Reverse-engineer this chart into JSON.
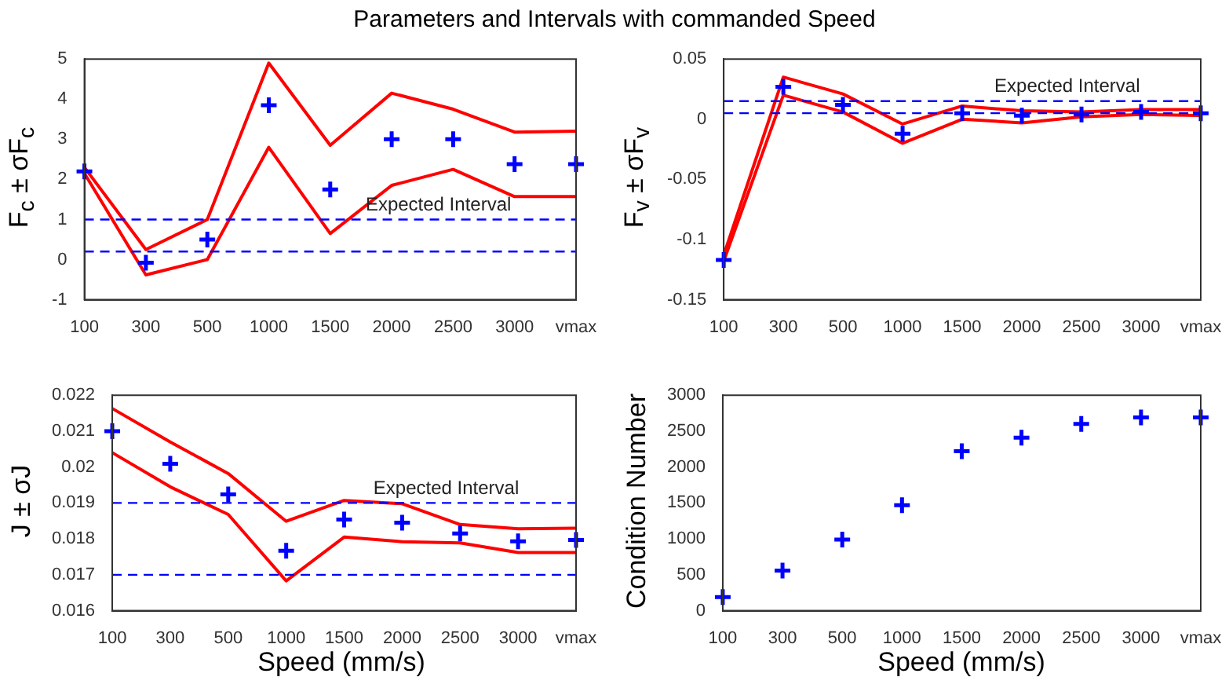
{
  "chart_data": [
    {
      "type": "line",
      "title": "Parameters and Intervals with commanded Speed",
      "ylabel": "F$_{c}$ ± σF$_{c}$",
      "categories": [
        "100",
        "300",
        "500",
        "1000",
        "1500",
        "2000",
        "2500",
        "3000",
        "vmax"
      ],
      "ylim": [
        -1,
        5
      ],
      "yticks": [
        -1,
        0,
        1,
        2,
        3,
        4,
        5
      ],
      "grid": false,
      "legend": false,
      "series": [
        {
          "color": "#ff0000",
          "marker": "none",
          "values": [
            2.3,
            0.25,
            1.0,
            4.9,
            2.85,
            4.15,
            3.75,
            3.18,
            3.2
          ]
        },
        {
          "color": "#ff0000",
          "marker": "none",
          "values": [
            2.15,
            -0.38,
            0.0,
            2.8,
            0.65,
            1.85,
            2.25,
            1.57,
            1.57
          ]
        },
        {
          "type": "scatter",
          "color": "#0000ff",
          "marker": "cross",
          "values": [
            2.2,
            -0.08,
            0.5,
            3.85,
            1.75,
            3.0,
            3.0,
            2.38,
            2.38
          ]
        }
      ],
      "ref_lines": [
        {
          "axis": "y",
          "value": 1,
          "color": "#0000ff",
          "line_style": "dashed"
        },
        {
          "axis": "y",
          "value": 0.2,
          "color": "#0000ff",
          "line_style": "dashed"
        }
      ],
      "annotations": [
        "Expected Interval"
      ]
    },
    {
      "type": "line",
      "ylabel": "F$_{v}$ ± σF$_{v}$",
      "categories": [
        "100",
        "300",
        "500",
        "1000",
        "1500",
        "2000",
        "2500",
        "3000",
        "vmax"
      ],
      "ylim": [
        -0.15,
        0.05
      ],
      "yticks": [
        -0.15,
        -0.1,
        -0.05,
        0,
        0.05
      ],
      "grid": false,
      "legend": false,
      "series": [
        {
          "color": "#ff0000",
          "marker": "none",
          "values": [
            -0.113,
            0.035,
            0.021,
            -0.004,
            0.011,
            0.007,
            0.006,
            0.008,
            0.008
          ]
        },
        {
          "color": "#ff0000",
          "marker": "none",
          "values": [
            -0.118,
            0.02,
            0.006,
            -0.02,
            0.0,
            -0.003,
            0.002,
            0.004,
            0.003
          ]
        },
        {
          "type": "scatter",
          "color": "#0000ff",
          "marker": "cross",
          "values": [
            -0.117,
            0.027,
            0.012,
            -0.012,
            0.005,
            0.003,
            0.004,
            0.006,
            0.005
          ]
        }
      ],
      "ref_lines": [
        {
          "axis": "y",
          "value": 0.015,
          "color": "#0000ff",
          "line_style": "dashed"
        },
        {
          "axis": "y",
          "value": 0.005,
          "color": "#0000ff",
          "line_style": "dashed"
        }
      ],
      "annotations": [
        "Expected Interval"
      ]
    },
    {
      "type": "line",
      "ylabel": "J ± σJ",
      "xlabel": "Speed (mm/s)",
      "categories": [
        "100",
        "300",
        "500",
        "1000",
        "1500",
        "2000",
        "2500",
        "3000",
        "vmax"
      ],
      "ylim": [
        0.016,
        0.022
      ],
      "yticks": [
        0.016,
        0.017,
        0.018,
        0.019,
        0.02,
        0.021,
        0.022
      ],
      "grid": false,
      "legend": false,
      "series": [
        {
          "color": "#ff0000",
          "marker": "none",
          "values": [
            0.02163,
            0.0207,
            0.01982,
            0.01849,
            0.01907,
            0.01898,
            0.0184,
            0.01828,
            0.0183
          ]
        },
        {
          "color": "#ff0000",
          "marker": "none",
          "values": [
            0.0204,
            0.01945,
            0.01868,
            0.01683,
            0.01805,
            0.01792,
            0.01789,
            0.01762,
            0.01762
          ]
        },
        {
          "type": "scatter",
          "color": "#0000ff",
          "marker": "cross",
          "values": [
            0.021,
            0.02009,
            0.01924,
            0.01767,
            0.01854,
            0.01845,
            0.01815,
            0.01793,
            0.01797
          ]
        }
      ],
      "ref_lines": [
        {
          "axis": "y",
          "value": 0.019,
          "color": "#0000ff",
          "line_style": "dashed"
        },
        {
          "axis": "y",
          "value": 0.017,
          "color": "#0000ff",
          "line_style": "dashed"
        }
      ],
      "annotations": [
        "Expected Interval"
      ]
    },
    {
      "type": "scatter",
      "ylabel": "Condition Number",
      "xlabel": "Speed (mm/s)",
      "categories": [
        "100",
        "300",
        "500",
        "1000",
        "1500",
        "2000",
        "2500",
        "3000",
        "vmax"
      ],
      "ylim": [
        0,
        3000
      ],
      "yticks": [
        0,
        500,
        1000,
        1500,
        2000,
        2500,
        3000
      ],
      "grid": false,
      "legend": false,
      "marker": "cross",
      "series": [
        {
          "color": "#0000ff",
          "values": [
            190,
            560,
            990,
            1470,
            2220,
            2410,
            2600,
            2690,
            2690
          ]
        }
      ]
    }
  ]
}
